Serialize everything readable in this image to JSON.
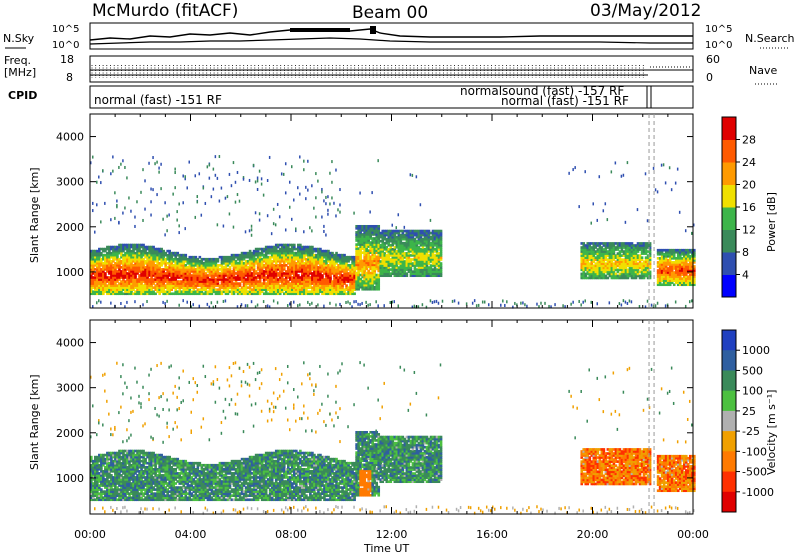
{
  "header": {
    "station": "McMurdo (fitACF)",
    "beam": "Beam 00",
    "date": "03/May/2012"
  },
  "top_panel": {
    "nsky_label": "N.Sky",
    "nsearch_label": "N.Search",
    "freq_label_1": "Freq.",
    "freq_label_2": "[MHz]",
    "nave_label": "Nave",
    "cpid_label": "CPID",
    "noise_ticks": [
      "10^5",
      "10^0"
    ],
    "freq_ticks": [
      "18",
      "8"
    ],
    "nave_ticks": [
      "60",
      "0"
    ],
    "cpid_text_1": "normal (fast) -151 RF",
    "cpid_text_2": "normalsound (fast) -157 RF",
    "cpid_text_3": "normal (fast) -151 RF"
  },
  "chart_data": [
    {
      "type": "heatmap",
      "name": "power",
      "ylabel": "Slant Range [km]",
      "xlabel": "Time UT",
      "xlim": [
        0,
        24
      ],
      "ylim": [
        200,
        4500
      ],
      "yticks": [
        "1000",
        "2000",
        "3000",
        "4000"
      ],
      "xticks": [
        "00:00",
        "04:00",
        "08:00",
        "12:00",
        "16:00",
        "20:00",
        "00:00"
      ],
      "colorbar": {
        "label": "Power [dB]",
        "ticks": [
          "4",
          "8",
          "12",
          "16",
          "20",
          "24",
          "28"
        ],
        "colors": [
          "#0000ff",
          "#2f4fb0",
          "#3a8a5a",
          "#3db54a",
          "#f0e000",
          "#ff9a00",
          "#ff5a00",
          "#e00000"
        ]
      }
    },
    {
      "type": "heatmap",
      "name": "velocity",
      "ylabel": "Slant Range [km]",
      "xlabel": "Time UT",
      "xlim": [
        0,
        24
      ],
      "ylim": [
        200,
        4500
      ],
      "yticks": [
        "1000",
        "2000",
        "3000",
        "4000"
      ],
      "xticks": [
        "00:00",
        "04:00",
        "08:00",
        "12:00",
        "16:00",
        "20:00",
        "00:00"
      ],
      "colorbar": {
        "label": "Velocity [m s⁻¹]",
        "ticks": [
          "1000",
          "500",
          "100",
          "25",
          "-25",
          "-100",
          "-500",
          "-1000"
        ],
        "colors": [
          "#2040c0",
          "#2f5fa0",
          "#3a8a5a",
          "#4cc040",
          "#b0b0b0",
          "#f0a000",
          "#ff7a00",
          "#ff3000",
          "#e00000"
        ]
      }
    }
  ]
}
